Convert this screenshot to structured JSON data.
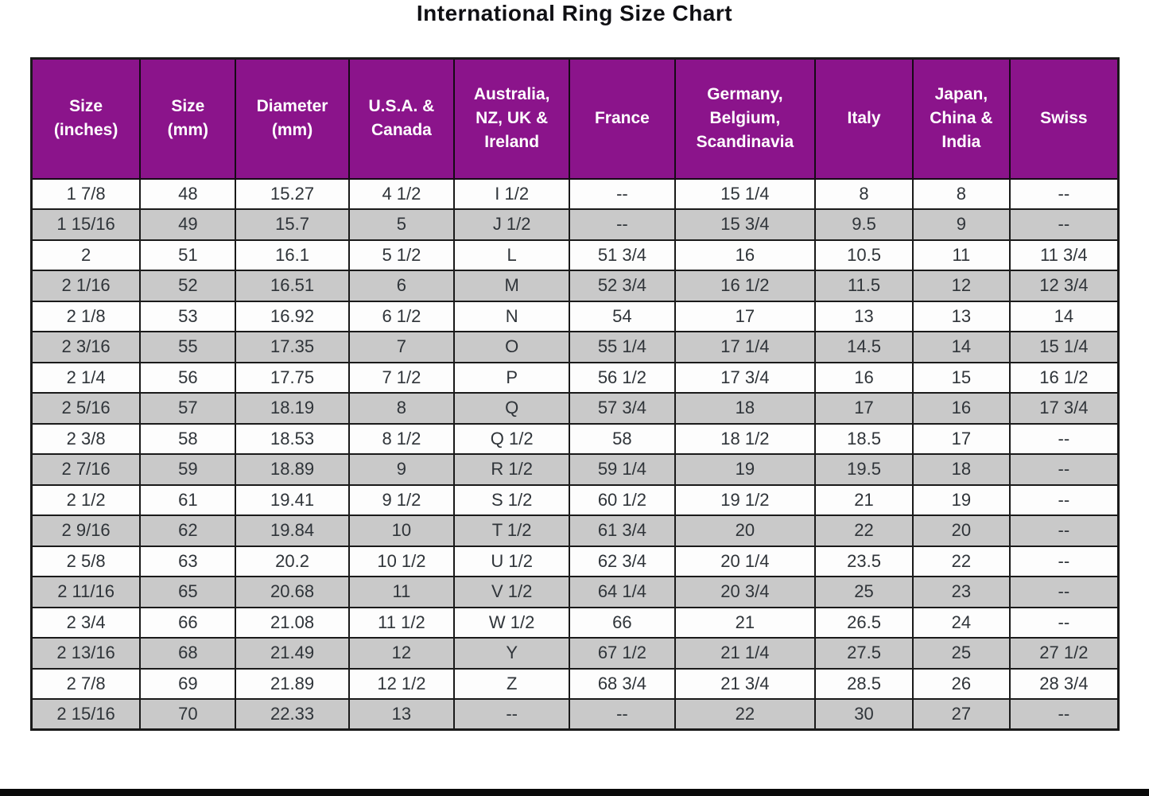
{
  "page": {
    "title": "International Ring Size Chart"
  },
  "colors": {
    "header_bg": "#8B148B",
    "header_text": "#FFFFFF",
    "row_bg": "#FDFDFD",
    "row_alt_bg": "#C9C9C9",
    "grid_line": "#1A1A1A",
    "cell_text": "#2F3439",
    "title_text": "#101014",
    "bottom_bar": "#0A0A0A"
  },
  "chart_data": {
    "type": "table",
    "title": "International Ring Size Chart",
    "columns": [
      "Size (inches)",
      "Size (mm)",
      "Diameter (mm)",
      "U.S.A. & Canada",
      "Australia, NZ, UK & Ireland",
      "France",
      "Germany, Belgium, Scandinavia",
      "Italy",
      "Japan, China & India",
      "Swiss"
    ],
    "rows": [
      [
        "1 7/8",
        "48",
        "15.27",
        "4 1/2",
        "I 1/2",
        "--",
        "15 1/4",
        "8",
        "8",
        "--"
      ],
      [
        "1 15/16",
        "49",
        "15.7",
        "5",
        "J 1/2",
        "--",
        "15 3/4",
        "9.5",
        "9",
        "--"
      ],
      [
        "2",
        "51",
        "16.1",
        "5 1/2",
        "L",
        "51 3/4",
        "16",
        "10.5",
        "11",
        "11 3/4"
      ],
      [
        "2 1/16",
        "52",
        "16.51",
        "6",
        "M",
        "52 3/4",
        "16 1/2",
        "11.5",
        "12",
        "12 3/4"
      ],
      [
        "2 1/8",
        "53",
        "16.92",
        "6 1/2",
        "N",
        "54",
        "17",
        "13",
        "13",
        "14"
      ],
      [
        "2 3/16",
        "55",
        "17.35",
        "7",
        "O",
        "55 1/4",
        "17 1/4",
        "14.5",
        "14",
        "15 1/4"
      ],
      [
        "2 1/4",
        "56",
        "17.75",
        "7 1/2",
        "P",
        "56 1/2",
        "17 3/4",
        "16",
        "15",
        "16 1/2"
      ],
      [
        "2 5/16",
        "57",
        "18.19",
        "8",
        "Q",
        "57 3/4",
        "18",
        "17",
        "16",
        "17 3/4"
      ],
      [
        "2 3/8",
        "58",
        "18.53",
        "8 1/2",
        "Q 1/2",
        "58",
        "18 1/2",
        "18.5",
        "17",
        "--"
      ],
      [
        "2 7/16",
        "59",
        "18.89",
        "9",
        "R 1/2",
        "59 1/4",
        "19",
        "19.5",
        "18",
        "--"
      ],
      [
        "2 1/2",
        "61",
        "19.41",
        "9 1/2",
        "S 1/2",
        "60 1/2",
        "19 1/2",
        "21",
        "19",
        "--"
      ],
      [
        "2 9/16",
        "62",
        "19.84",
        "10",
        "T 1/2",
        "61 3/4",
        "20",
        "22",
        "20",
        "--"
      ],
      [
        "2 5/8",
        "63",
        "20.2",
        "10 1/2",
        "U 1/2",
        "62 3/4",
        "20 1/4",
        "23.5",
        "22",
        "--"
      ],
      [
        "2 11/16",
        "65",
        "20.68",
        "11",
        "V 1/2",
        "64 1/4",
        "20 3/4",
        "25",
        "23",
        "--"
      ],
      [
        "2 3/4",
        "66",
        "21.08",
        "11 1/2",
        "W 1/2",
        "66",
        "21",
        "26.5",
        "24",
        "--"
      ],
      [
        "2 13/16",
        "68",
        "21.49",
        "12",
        "Y",
        "67 1/2",
        "21 1/4",
        "27.5",
        "25",
        "27 1/2"
      ],
      [
        "2 7/8",
        "69",
        "21.89",
        "12 1/2",
        "Z",
        "68 3/4",
        "21 3/4",
        "28.5",
        "26",
        "28 3/4"
      ],
      [
        "2 15/16",
        "70",
        "22.33",
        "13",
        "--",
        "--",
        "22",
        "30",
        "27",
        "--"
      ]
    ],
    "layout_hints": {
      "header_background": "#8B148B",
      "alternating_rows": true,
      "column_width_percent": [
        10.0,
        8.8,
        10.4,
        9.7,
        10.6,
        9.7,
        12.9,
        9.0,
        8.9,
        10.0
      ]
    }
  }
}
